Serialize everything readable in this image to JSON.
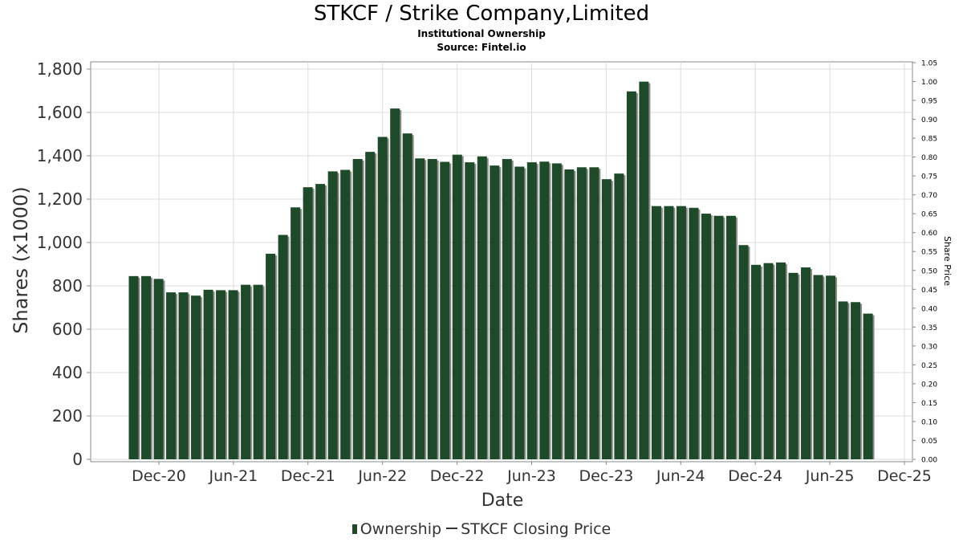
{
  "header": {
    "title": "STKCF / Strike Company,Limited",
    "subtitle1": "Institutional Ownership",
    "subtitle2": "Source: Fintel.io"
  },
  "legend": {
    "ownership": "Ownership",
    "price": "STKCF Closing Price"
  },
  "colors": {
    "bar": "#1e4a2a",
    "bar_shadow": "#8a8f8a",
    "grid": "#dddddd",
    "frame": "#888888"
  },
  "chart_data": {
    "type": "bar",
    "xlabel": "Date",
    "ylabel": "Shares (x1000)",
    "y2label": "Share Price",
    "ylim": [
      0,
      1800
    ],
    "y2lim": [
      0,
      1.05
    ],
    "yticks": [
      0,
      200,
      400,
      600,
      800,
      1000,
      1200,
      1400,
      1600,
      1800
    ],
    "ytick_labels": [
      "0",
      "200",
      "400",
      "600",
      "800",
      "1,000",
      "1,200",
      "1,400",
      "1,600",
      "1,800"
    ],
    "y2ticks": [
      "0.00",
      "0.05",
      "0.10",
      "0.15",
      "0.20",
      "0.25",
      "0.30",
      "0.35",
      "0.40",
      "0.45",
      "0.50",
      "0.55",
      "0.60",
      "0.65",
      "0.70",
      "0.75",
      "0.80",
      "0.85",
      "0.90",
      "0.95",
      "1.00",
      "1.05"
    ],
    "xticks": [
      "Dec-20",
      "Jun-21",
      "Dec-21",
      "Jun-22",
      "Dec-22",
      "Jun-23",
      "Dec-23",
      "Jun-24",
      "Dec-24",
      "Jun-25",
      "Dec-25"
    ],
    "grid": true,
    "legend_position": "bottom",
    "series": [
      {
        "name": "Ownership",
        "values": [
          845,
          845,
          832,
          770,
          770,
          755,
          782,
          780,
          780,
          805,
          805,
          948,
          1035,
          1162,
          1255,
          1270,
          1328,
          1335,
          1385,
          1418,
          1487,
          1618,
          1503,
          1388,
          1385,
          1372,
          1405,
          1370,
          1397,
          1355,
          1385,
          1350,
          1370,
          1373,
          1365,
          1337,
          1347,
          1347,
          1292,
          1318,
          1697,
          1742,
          1168,
          1168,
          1168,
          1160,
          1133,
          1123,
          1123,
          988,
          897,
          905,
          908,
          860,
          885,
          850,
          847,
          728,
          725,
          672
        ]
      }
    ]
  }
}
